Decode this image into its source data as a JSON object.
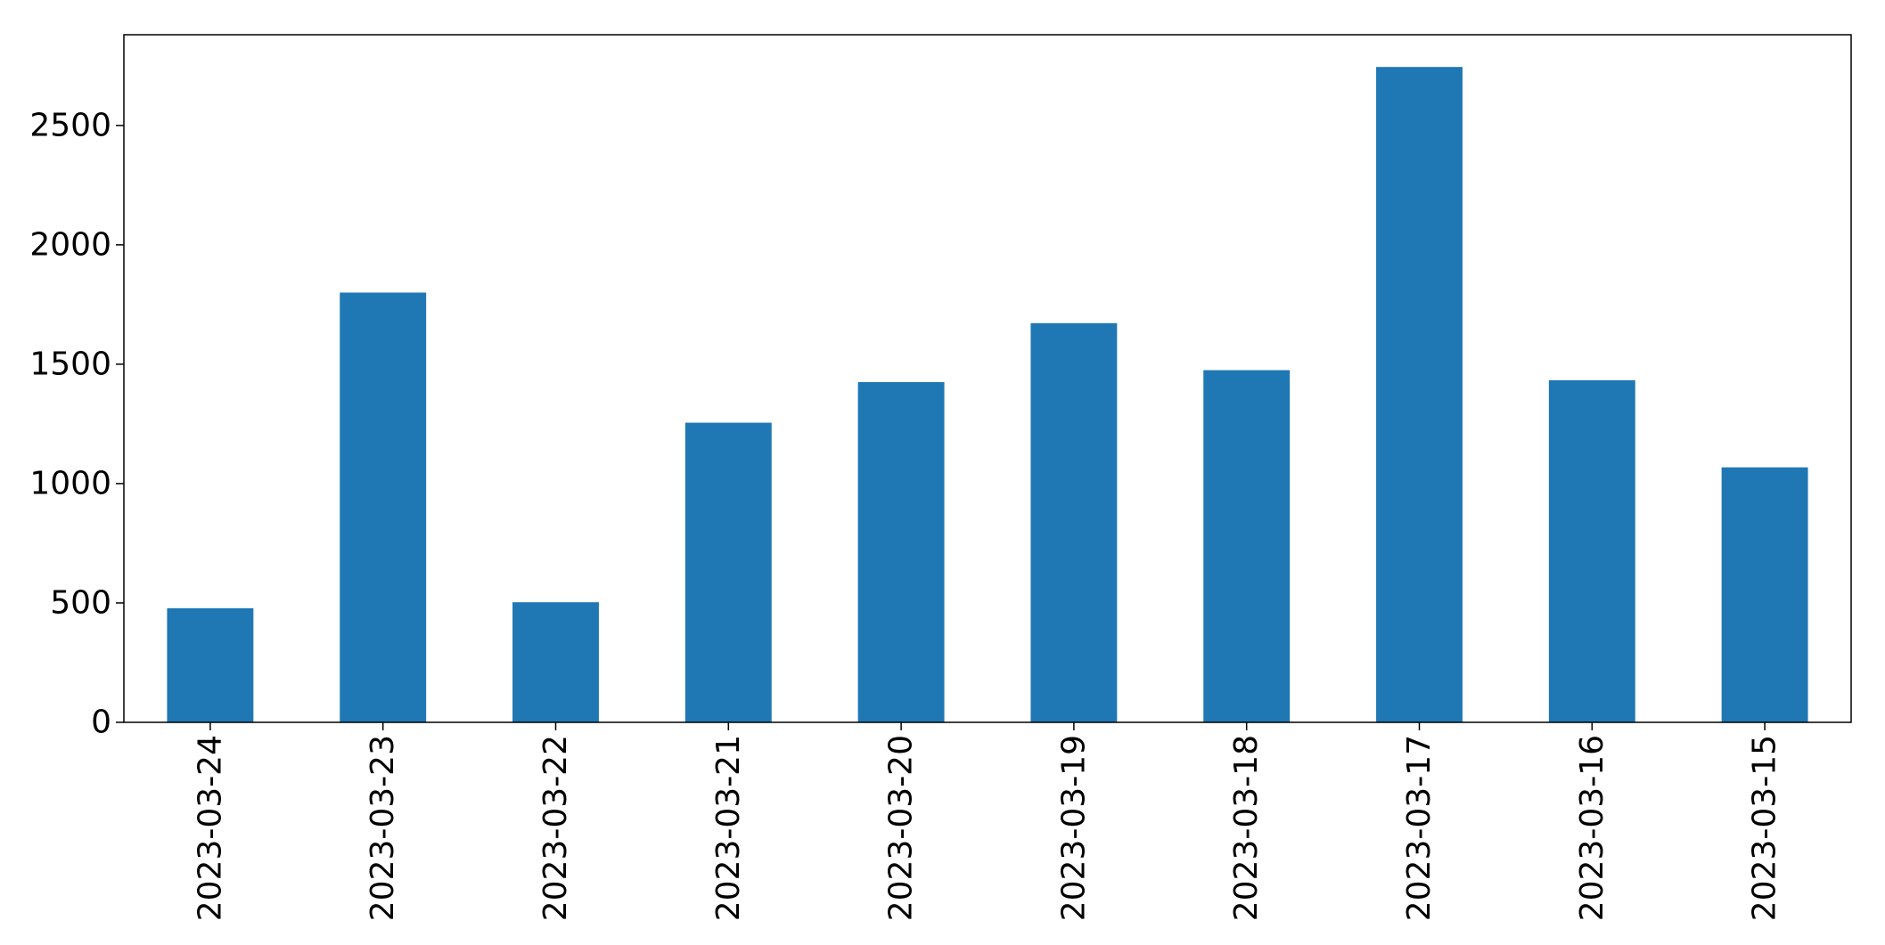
{
  "chart_data": {
    "type": "bar",
    "categories": [
      "2023-03-24",
      "2023-03-23",
      "2023-03-22",
      "2023-03-21",
      "2023-03-20",
      "2023-03-19",
      "2023-03-18",
      "2023-03-17",
      "2023-03-16",
      "2023-03-15"
    ],
    "values": [
      478,
      1800,
      503,
      1255,
      1425,
      1672,
      1475,
      2745,
      1433,
      1068
    ],
    "ylim": [
      0,
      2880
    ],
    "yticks": [
      0,
      500,
      1000,
      1500,
      2000,
      2500
    ],
    "grid": false,
    "legend": "none",
    "colors": {
      "bar": "#1f77b4"
    }
  }
}
